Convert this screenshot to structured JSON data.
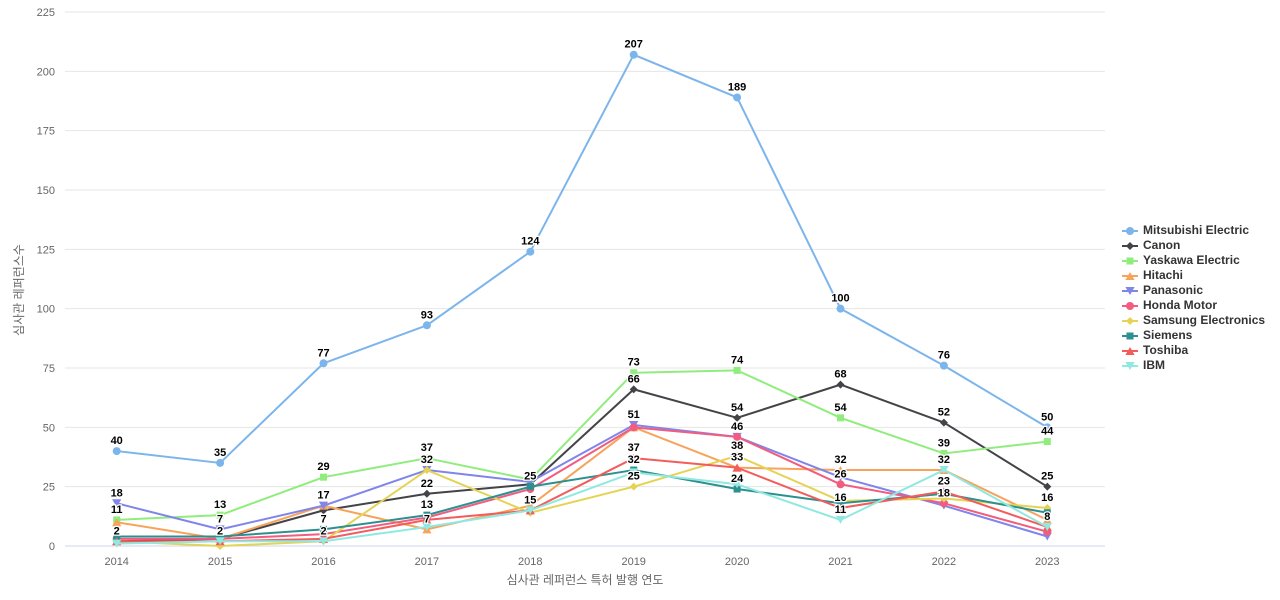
{
  "chart_data": {
    "type": "line",
    "title": "",
    "xlabel": "심사관 레퍼런스 특허 발행 연도",
    "ylabel": "심사관 레퍼런스수",
    "x_categories": [
      "2014",
      "2015",
      "2016",
      "2017",
      "2018",
      "2019",
      "2020",
      "2021",
      "2022",
      "2023"
    ],
    "ylim": [
      0,
      225
    ],
    "ytick_step": 25,
    "grid": "horizontal",
    "legend_position": "right",
    "colors": {
      "grid_line": "#E6E6E6",
      "axis_line": "#CCD6EB",
      "tick_text": "#666666",
      "data_label": "#000000",
      "legend_text": "#333333",
      "background": "#FFFFFF"
    },
    "series": [
      {
        "name": "Mitsubishi Electric",
        "color": "#7CB5EC",
        "marker": "circle",
        "values": [
          40,
          35,
          77,
          93,
          124,
          207,
          189,
          100,
          76,
          50
        ],
        "labeled_years": [
          "2014",
          "2015",
          "2016",
          "2017",
          "2018",
          "2019",
          "2020",
          "2021",
          "2022",
          "2023"
        ]
      },
      {
        "name": "Canon",
        "color": "#434348",
        "marker": "diamond",
        "values": [
          2,
          3,
          15,
          22,
          26,
          66,
          54,
          68,
          52,
          25
        ],
        "labeled_years": [
          "2017",
          "2019",
          "2020",
          "2021",
          "2022",
          "2023"
        ]
      },
      {
        "name": "Yaskawa Electric",
        "color": "#90ED7D",
        "marker": "square",
        "values": [
          11,
          13,
          29,
          37,
          28,
          73,
          74,
          54,
          39,
          44
        ],
        "labeled_years": [
          "2014",
          "2015",
          "2016",
          "2017",
          "2019",
          "2020",
          "2021",
          "2022",
          "2023"
        ]
      },
      {
        "name": "Hitachi",
        "color": "#F7A35C",
        "marker": "triangle",
        "values": [
          10,
          3,
          17,
          7,
          17,
          50,
          33,
          32,
          32,
          11
        ],
        "labeled_years": [
          "2017",
          "2021"
        ]
      },
      {
        "name": "Panasonic",
        "color": "#8085E9",
        "marker": "triangle-down",
        "values": [
          18,
          7,
          17,
          32,
          27,
          51,
          46,
          29,
          17,
          4
        ],
        "labeled_years": [
          "2014",
          "2015",
          "2016",
          "2019",
          "2020"
        ]
      },
      {
        "name": "Honda Motor",
        "color": "#F15C80",
        "marker": "circle",
        "values": [
          3,
          3,
          5,
          12,
          24,
          50,
          46,
          26,
          18,
          6
        ],
        "labeled_years": [
          "2021",
          "2022"
        ]
      },
      {
        "name": "Samsung Electronics",
        "color": "#E4D354",
        "marker": "diamond",
        "values": [
          2,
          0,
          2,
          32,
          14,
          25,
          38,
          19,
          20,
          16
        ],
        "labeled_years": [
          "2016",
          "2017",
          "2019",
          "2020",
          "2023"
        ]
      },
      {
        "name": "Siemens",
        "color": "#2B908F",
        "marker": "square",
        "values": [
          4,
          4,
          7,
          13,
          25,
          32,
          24,
          18,
          22,
          14
        ],
        "labeled_years": [
          "2016",
          "2017",
          "2018",
          "2019",
          "2020"
        ]
      },
      {
        "name": "Toshiba",
        "color": "#F45B5B",
        "marker": "triangle",
        "values": [
          2,
          2,
          3,
          11,
          15,
          37,
          33,
          16,
          23,
          8
        ],
        "labeled_years": [
          "2014",
          "2015",
          "2018",
          "2019",
          "2020",
          "2021",
          "2022"
        ]
      },
      {
        "name": "IBM",
        "color": "#91E8E1",
        "marker": "triangle-down",
        "values": [
          1,
          2,
          2,
          8,
          15,
          31,
          26,
          11,
          32,
          8
        ],
        "labeled_years": [
          "2021",
          "2022",
          "2023"
        ]
      }
    ]
  }
}
